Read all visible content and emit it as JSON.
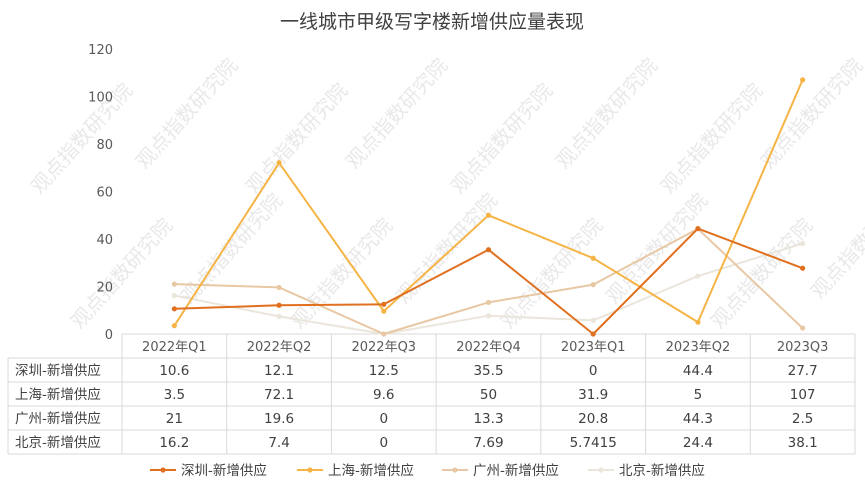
{
  "chart_data": {
    "type": "line",
    "title": "一线城市甲级写字楼新增供应量表现",
    "categories": [
      "2022年Q1",
      "2022年Q2",
      "2022年Q3",
      "2022年Q4",
      "2023年Q1",
      "2023年Q2",
      "2023Q3"
    ],
    "y_ticks": [
      "0",
      "20",
      "40",
      "60",
      "80",
      "100",
      "120"
    ],
    "ylim": [
      0,
      120
    ],
    "grid": false,
    "legend_position": "bottom",
    "data_table": true,
    "watermark": "观点指数研究院",
    "series": [
      {
        "name": "深圳-新增供应",
        "color": "#E07020",
        "values": [
          10.6,
          12.1,
          12.5,
          35.5,
          0,
          44.4,
          27.7
        ],
        "labels": [
          "10.6",
          "12.1",
          "12.5",
          "35.5",
          "0",
          "44.4",
          "27.7"
        ]
      },
      {
        "name": "上海-新增供应",
        "color": "#F5B445",
        "values": [
          3.5,
          72.1,
          9.6,
          50,
          31.9,
          5,
          107
        ],
        "labels": [
          "3.5",
          "72.1",
          "9.6",
          "50",
          "31.9",
          "5",
          "107"
        ]
      },
      {
        "name": "广州-新增供应",
        "color": "#E8C8A4",
        "values": [
          21,
          19.6,
          0,
          13.3,
          20.8,
          44.3,
          2.5
        ],
        "labels": [
          "21",
          "19.6",
          "0",
          "13.3",
          "20.8",
          "44.3",
          "2.5"
        ]
      },
      {
        "name": "北京-新增供应",
        "color": "#EBE6DC",
        "values": [
          16.2,
          7.4,
          0,
          7.69,
          5.7415,
          24.4,
          38.1
        ],
        "labels": [
          "16.2",
          "7.4",
          "0",
          "7.69",
          "5.7415",
          "24.4",
          "38.1"
        ]
      }
    ]
  }
}
